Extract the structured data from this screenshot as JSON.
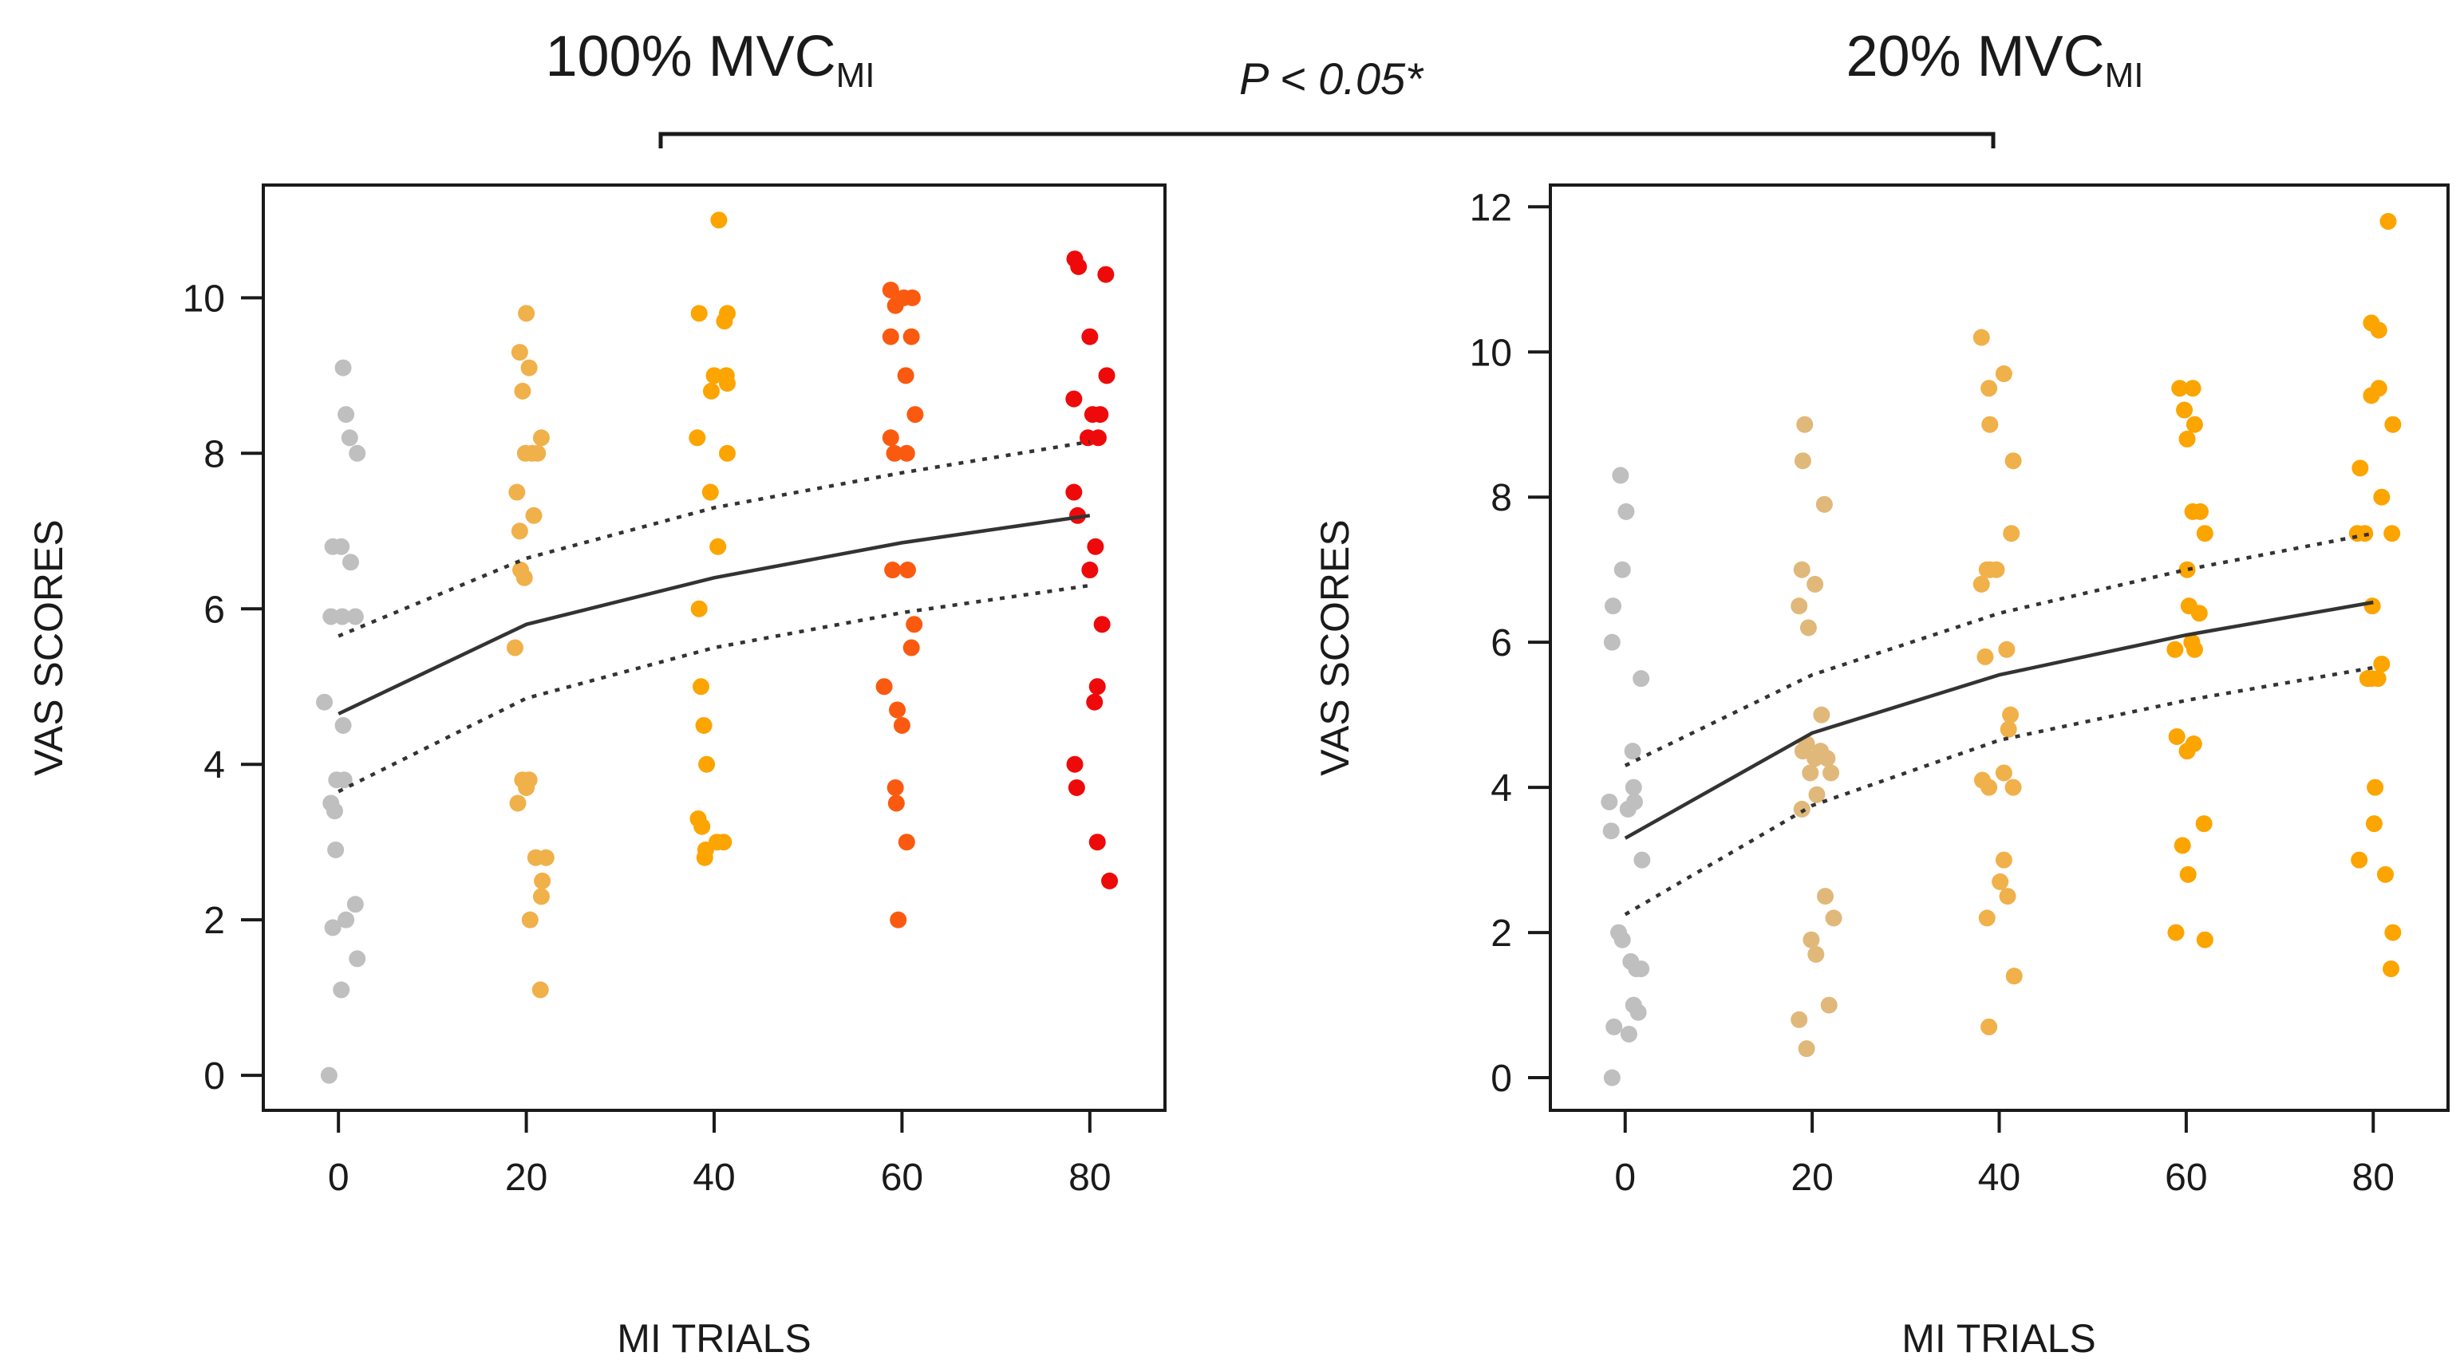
{
  "comparison": {
    "p_value_prefix": "P",
    "p_value_text": "< 0.05*"
  },
  "chart_data": [
    {
      "type": "scatter",
      "title": "100% MVC",
      "title_main": "100% MVC",
      "title_sub": "MI",
      "xlabel": "MI TRIALS",
      "ylabel": "VAS SCORES",
      "xlim": [
        -8,
        88
      ],
      "ylim": [
        -0.45,
        11.45
      ],
      "xticks": [
        0,
        20,
        40,
        60,
        80
      ],
      "yticks": [
        0,
        2,
        4,
        6,
        8,
        10
      ],
      "fit_mean": [
        [
          0,
          4.65
        ],
        [
          20,
          5.8
        ],
        [
          40,
          6.4
        ],
        [
          60,
          6.85
        ],
        [
          80,
          7.2
        ]
      ],
      "fit_upper": [
        [
          0,
          5.65
        ],
        [
          20,
          6.65
        ],
        [
          40,
          7.3
        ],
        [
          60,
          7.75
        ],
        [
          80,
          8.15
        ]
      ],
      "fit_lower": [
        [
          0,
          3.65
        ],
        [
          20,
          4.85
        ],
        [
          40,
          5.5
        ],
        [
          60,
          5.95
        ],
        [
          80,
          6.3
        ]
      ],
      "series": [
        {
          "name": "0",
          "color": "#bfbfbf",
          "points": [
            [
              -1.5,
              4.8
            ],
            [
              0.5,
              9.1
            ],
            [
              0.8,
              8.5
            ],
            [
              1.2,
              8.2
            ],
            [
              2.0,
              8.0
            ],
            [
              -0.6,
              6.8
            ],
            [
              0.3,
              6.8
            ],
            [
              1.3,
              6.6
            ],
            [
              -0.8,
              5.9
            ],
            [
              0.4,
              5.9
            ],
            [
              1.8,
              5.9
            ],
            [
              0.5,
              4.5
            ],
            [
              -0.2,
              3.8
            ],
            [
              0.6,
              3.8
            ],
            [
              -0.8,
              3.5
            ],
            [
              -0.4,
              3.4
            ],
            [
              -0.3,
              2.9
            ],
            [
              1.8,
              2.2
            ],
            [
              0.8,
              2.0
            ],
            [
              -0.6,
              1.9
            ],
            [
              2.0,
              1.5
            ],
            [
              0.3,
              1.1
            ],
            [
              -1.0,
              0.0
            ]
          ]
        },
        {
          "name": "20",
          "color": "#f0b04a",
          "points": [
            [
              20.0,
              9.8
            ],
            [
              19.3,
              9.3
            ],
            [
              20.3,
              9.1
            ],
            [
              19.6,
              8.8
            ],
            [
              21.6,
              8.2
            ],
            [
              20.6,
              8.0
            ],
            [
              19.9,
              8.0
            ],
            [
              21.2,
              8.0
            ],
            [
              19.0,
              7.5
            ],
            [
              20.8,
              7.2
            ],
            [
              19.3,
              7.0
            ],
            [
              19.4,
              6.5
            ],
            [
              19.8,
              6.4
            ],
            [
              18.8,
              5.5
            ],
            [
              19.6,
              3.8
            ],
            [
              20.3,
              3.8
            ],
            [
              20.0,
              3.7
            ],
            [
              19.1,
              3.5
            ],
            [
              21.0,
              2.8
            ],
            [
              22.1,
              2.8
            ],
            [
              21.7,
              2.5
            ],
            [
              21.6,
              2.3
            ],
            [
              20.4,
              2.0
            ],
            [
              21.5,
              1.1
            ]
          ]
        },
        {
          "name": "40",
          "color": "#fca400",
          "points": [
            [
              40.5,
              11.0
            ],
            [
              38.4,
              9.8
            ],
            [
              41.4,
              9.8
            ],
            [
              41.1,
              9.7
            ],
            [
              40.0,
              9.0
            ],
            [
              41.3,
              9.0
            ],
            [
              39.7,
              8.8
            ],
            [
              41.4,
              8.9
            ],
            [
              38.2,
              8.2
            ],
            [
              41.4,
              8.0
            ],
            [
              39.6,
              7.5
            ],
            [
              40.4,
              6.8
            ],
            [
              38.4,
              6.0
            ],
            [
              38.6,
              5.0
            ],
            [
              38.9,
              4.5
            ],
            [
              39.2,
              4.0
            ],
            [
              38.3,
              3.3
            ],
            [
              38.7,
              3.2
            ],
            [
              40.3,
              3.0
            ],
            [
              41.0,
              3.0
            ],
            [
              39.1,
              2.9
            ],
            [
              39.0,
              2.8
            ]
          ]
        },
        {
          "name": "60",
          "color": "#fa5a10",
          "points": [
            [
              58.8,
              10.1
            ],
            [
              60.2,
              10.0
            ],
            [
              61.1,
              10.0
            ],
            [
              59.3,
              9.9
            ],
            [
              58.8,
              9.5
            ],
            [
              61.0,
              9.5
            ],
            [
              60.4,
              9.0
            ],
            [
              61.4,
              8.5
            ],
            [
              58.8,
              8.2
            ],
            [
              59.2,
              8.0
            ],
            [
              60.5,
              8.0
            ],
            [
              59.0,
              6.5
            ],
            [
              60.6,
              6.5
            ],
            [
              61.3,
              5.8
            ],
            [
              61.0,
              5.5
            ],
            [
              58.1,
              5.0
            ],
            [
              59.5,
              4.7
            ],
            [
              60.0,
              4.5
            ],
            [
              59.3,
              3.7
            ],
            [
              59.4,
              3.5
            ],
            [
              60.5,
              3.0
            ],
            [
              59.6,
              2.0
            ]
          ]
        },
        {
          "name": "80",
          "color": "#ee0a0a",
          "points": [
            [
              78.4,
              10.5
            ],
            [
              78.8,
              10.4
            ],
            [
              81.7,
              10.3
            ],
            [
              80.0,
              9.5
            ],
            [
              81.8,
              9.0
            ],
            [
              78.3,
              8.7
            ],
            [
              80.3,
              8.5
            ],
            [
              81.1,
              8.5
            ],
            [
              79.8,
              8.2
            ],
            [
              80.9,
              8.2
            ],
            [
              78.3,
              7.5
            ],
            [
              78.7,
              7.2
            ],
            [
              80.6,
              6.8
            ],
            [
              80.0,
              6.5
            ],
            [
              81.3,
              5.8
            ],
            [
              80.8,
              5.0
            ],
            [
              80.5,
              4.8
            ],
            [
              78.4,
              4.0
            ],
            [
              78.6,
              3.7
            ],
            [
              80.8,
              3.0
            ],
            [
              82.1,
              2.5
            ]
          ]
        }
      ]
    },
    {
      "type": "scatter",
      "title": "20% MVC",
      "title_main": "20% MVC",
      "title_sub": "MI",
      "xlabel": "MI TRIALS",
      "ylabel": "VAS SCORES",
      "xlim": [
        -8,
        88
      ],
      "ylim": [
        -0.45,
        12.3
      ],
      "xticks": [
        0,
        20,
        40,
        60,
        80
      ],
      "yticks": [
        0,
        2,
        4,
        6,
        8,
        10,
        12
      ],
      "fit_mean": [
        [
          0,
          3.3
        ],
        [
          20,
          4.75
        ],
        [
          40,
          5.55
        ],
        [
          60,
          6.1
        ],
        [
          80,
          6.55
        ]
      ],
      "fit_upper": [
        [
          0,
          4.3
        ],
        [
          20,
          5.55
        ],
        [
          40,
          6.4
        ],
        [
          60,
          7.0
        ],
        [
          80,
          7.5
        ]
      ],
      "fit_lower": [
        [
          0,
          2.25
        ],
        [
          20,
          3.75
        ],
        [
          40,
          4.65
        ],
        [
          60,
          5.2
        ],
        [
          80,
          5.65
        ]
      ],
      "series": [
        {
          "name": "0",
          "color": "#bfbfbf",
          "points": [
            [
              -0.5,
              8.3
            ],
            [
              0.1,
              7.8
            ],
            [
              -0.3,
              7.0
            ],
            [
              -1.3,
              6.5
            ],
            [
              -1.4,
              6.0
            ],
            [
              1.7,
              5.5
            ],
            [
              0.8,
              4.5
            ],
            [
              -1.7,
              3.8
            ],
            [
              0.3,
              3.7
            ],
            [
              0.9,
              4.0
            ],
            [
              1.0,
              3.8
            ],
            [
              -1.5,
              3.4
            ],
            [
              1.8,
              3.0
            ],
            [
              -0.7,
              2.0
            ],
            [
              -0.3,
              1.9
            ],
            [
              0.6,
              1.6
            ],
            [
              1.2,
              1.5
            ],
            [
              1.7,
              1.5
            ],
            [
              0.9,
              1.0
            ],
            [
              1.4,
              0.9
            ],
            [
              -1.2,
              0.7
            ],
            [
              0.4,
              0.6
            ],
            [
              -1.4,
              0.0
            ]
          ]
        },
        {
          "name": "20",
          "color": "#e0b87a",
          "points": [
            [
              19.2,
              9.0
            ],
            [
              19.0,
              8.5
            ],
            [
              21.3,
              7.9
            ],
            [
              18.9,
              7.0
            ],
            [
              20.3,
              6.8
            ],
            [
              18.6,
              6.5
            ],
            [
              19.6,
              6.2
            ],
            [
              21.0,
              5.0
            ],
            [
              19.0,
              4.5
            ],
            [
              19.4,
              4.6
            ],
            [
              20.3,
              4.4
            ],
            [
              20.9,
              4.5
            ],
            [
              21.6,
              4.4
            ],
            [
              19.8,
              4.2
            ],
            [
              22.0,
              4.2
            ],
            [
              20.5,
              3.9
            ],
            [
              18.9,
              3.7
            ],
            [
              21.4,
              2.5
            ],
            [
              22.3,
              2.2
            ],
            [
              19.9,
              1.9
            ],
            [
              20.4,
              1.7
            ],
            [
              21.8,
              1.0
            ],
            [
              18.6,
              0.8
            ],
            [
              19.4,
              0.4
            ]
          ]
        },
        {
          "name": "40",
          "color": "#f0b04a",
          "points": [
            [
              38.1,
              10.2
            ],
            [
              40.5,
              9.7
            ],
            [
              38.9,
              9.5
            ],
            [
              39.0,
              9.0
            ],
            [
              41.5,
              8.5
            ],
            [
              41.3,
              7.5
            ],
            [
              38.7,
              7.0
            ],
            [
              39.0,
              7.0
            ],
            [
              39.7,
              7.0
            ],
            [
              38.1,
              6.8
            ],
            [
              38.5,
              5.8
            ],
            [
              40.8,
              5.9
            ],
            [
              41.2,
              5.0
            ],
            [
              41.0,
              4.8
            ],
            [
              38.2,
              4.1
            ],
            [
              40.5,
              4.2
            ],
            [
              38.9,
              4.0
            ],
            [
              41.5,
              4.0
            ],
            [
              40.5,
              3.0
            ],
            [
              40.1,
              2.7
            ],
            [
              40.9,
              2.5
            ],
            [
              38.7,
              2.2
            ],
            [
              41.6,
              1.4
            ],
            [
              38.9,
              0.7
            ]
          ]
        },
        {
          "name": "60",
          "color": "#fca400",
          "points": [
            [
              59.3,
              9.5
            ],
            [
              60.7,
              9.5
            ],
            [
              59.8,
              9.2
            ],
            [
              60.9,
              9.0
            ],
            [
              60.1,
              8.8
            ],
            [
              60.7,
              7.8
            ],
            [
              61.5,
              7.8
            ],
            [
              62.0,
              7.5
            ],
            [
              60.1,
              7.0
            ],
            [
              60.3,
              6.5
            ],
            [
              61.4,
              6.4
            ],
            [
              58.8,
              5.9
            ],
            [
              60.6,
              6.0
            ],
            [
              60.9,
              5.9
            ],
            [
              59.0,
              4.7
            ],
            [
              60.8,
              4.6
            ],
            [
              60.1,
              4.5
            ],
            [
              61.9,
              3.5
            ],
            [
              59.6,
              3.2
            ],
            [
              60.2,
              2.8
            ],
            [
              58.9,
              2.0
            ],
            [
              62.0,
              1.9
            ]
          ]
        },
        {
          "name": "80",
          "color": "#fca400",
          "points": [
            [
              81.6,
              11.8
            ],
            [
              79.8,
              10.4
            ],
            [
              80.6,
              10.3
            ],
            [
              80.6,
              9.5
            ],
            [
              79.8,
              9.4
            ],
            [
              82.1,
              9.0
            ],
            [
              78.6,
              8.4
            ],
            [
              80.9,
              8.0
            ],
            [
              78.3,
              7.5
            ],
            [
              82.0,
              7.5
            ],
            [
              79.1,
              7.5
            ],
            [
              79.9,
              6.5
            ],
            [
              80.9,
              5.7
            ],
            [
              79.4,
              5.5
            ],
            [
              79.8,
              5.5
            ],
            [
              80.5,
              5.5
            ],
            [
              80.2,
              4.0
            ],
            [
              80.1,
              3.5
            ],
            [
              78.5,
              3.0
            ],
            [
              81.3,
              2.8
            ],
            [
              82.1,
              2.0
            ],
            [
              81.9,
              1.5
            ]
          ]
        }
      ]
    }
  ]
}
